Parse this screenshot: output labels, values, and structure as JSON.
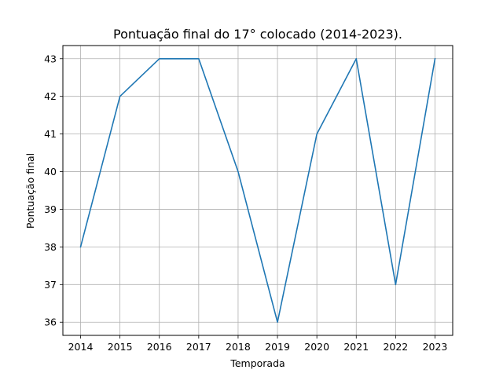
{
  "chart_data": {
    "type": "line",
    "title": "Pontuação final do 17° colocado (2014-2023).",
    "xlabel": "Temporada",
    "ylabel": "Pontuação final",
    "x": [
      "2014",
      "2015",
      "2016",
      "2017",
      "2018",
      "2019",
      "2020",
      "2021",
      "2022",
      "2023"
    ],
    "series": [
      {
        "values": [
          38,
          42,
          43,
          43,
          40,
          36,
          41,
          43,
          37,
          43
        ],
        "color": "#1f77b4"
      }
    ],
    "yticks": [
      "36",
      "37",
      "38",
      "39",
      "40",
      "41",
      "42",
      "43"
    ],
    "ylim": [
      35.65,
      43.35
    ],
    "grid": true,
    "legend": "none"
  }
}
